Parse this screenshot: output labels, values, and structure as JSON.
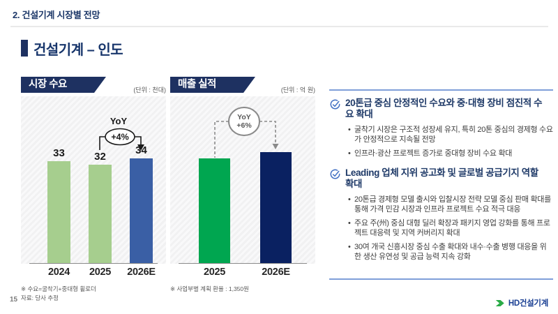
{
  "page": {
    "kicker": "2. 건설기계 시장별 전망",
    "title": "건설기계 – 인도",
    "page_number": "15",
    "logo_text": "HD건설기계"
  },
  "colors": {
    "navy": "#1e3161",
    "accent_blue": "#4472c4",
    "panel_line_blue": "#7f9fd9",
    "light_green_bar": "#a6ce8e",
    "medium_blue_bar": "#3a5fa5",
    "bright_green_bar": "#00a650",
    "dark_navy_bar": "#0a2161"
  },
  "chart_data": [
    {
      "type": "bar",
      "title": "시장 수요",
      "unit": "(단위 : 천대)",
      "categories": [
        "2024",
        "2025",
        "2026E"
      ],
      "values": [
        33,
        32,
        34
      ],
      "value_labels": [
        "33",
        "32",
        "34"
      ],
      "bar_colors": [
        "#a6ce8e",
        "#a6ce8e",
        "#3a5fa5"
      ],
      "yoy": {
        "label": "YoY",
        "value": "+4%"
      },
      "footnotes": [
        "※ 수요=굴착기+중대형 휠로더",
        "자료: 당사 추정"
      ]
    },
    {
      "type": "bar",
      "title": "매출 실적",
      "unit": "(단위 : 억 원)",
      "categories": [
        "2025",
        "2026E"
      ],
      "values": [
        100,
        106
      ],
      "value_labels": [],
      "bar_colors": [
        "#00a650",
        "#0a2161"
      ],
      "yoy": {
        "label": "YoY",
        "value": "+6%"
      },
      "footnotes": [
        "※ 사업부별 계획 환율 : 1,350원"
      ]
    }
  ],
  "insights": {
    "sections": [
      {
        "heading": "20톤급 중심 안정적인 수요와 중·대형 장비 점진적 수요 확대",
        "bullets": [
          "굴착기 시장은 구조적 성장세 유지, 특히 20톤 중심의 경제형 수요가 안정적으로 지속될 전망",
          "인프라·광산 프로젝트 증가로 중대형 장비 수요 확대"
        ]
      },
      {
        "heading": "Leading 업체 지위 공고화 및 글로벌 공급기지 역할 확대",
        "bullets": [
          "20톤급 경제형 모델 출시와 입찰시장 전략 모델 중심 판매 확대를 통해 가격 민감 시장과 인프라 프로젝트 수요 적극 대응",
          "주요 주(州) 중심 대형 딜러 확장과 패키지 영업 강화를 통해 프로젝트 대응력 및 지역 커버리지 확대",
          "30여 개국 신흥시장 중심 수출 확대와 내수·수출 병행 대응을 위한 생산 유연성 및 공급 능력 지속 강화"
        ]
      }
    ]
  }
}
